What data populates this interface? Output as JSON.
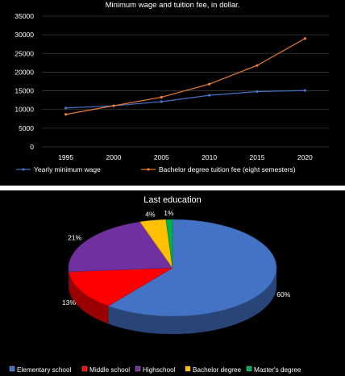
{
  "chart_data": [
    {
      "type": "line",
      "title": "Minimum wage and tuition fee, in dollar.",
      "x": [
        "1995",
        "2000",
        "2005",
        "2010",
        "2015",
        "2020"
      ],
      "ylim": [
        0,
        35000
      ],
      "yticks": [
        "0",
        "5000",
        "10000",
        "15000",
        "20000",
        "25000",
        "30000",
        "35000"
      ],
      "grid": true,
      "legend_position": "bottom",
      "series": [
        {
          "name": "Yearly minimum wage",
          "color": "#4472c4",
          "values": [
            10400,
            11000,
            12100,
            13800,
            14800,
            15100
          ]
        },
        {
          "name": "Bachelor degree tuition fee (eight semesters)",
          "color": "#ed7d31",
          "values": [
            8700,
            11000,
            13300,
            16800,
            21800,
            29000
          ]
        }
      ]
    },
    {
      "type": "pie",
      "title": "Last education",
      "legend_position": "bottom",
      "slices": [
        {
          "name": "Elementary school",
          "value": 60,
          "label": "60%",
          "color": "#4472c4"
        },
        {
          "name": "Middle school",
          "value": 13,
          "label": "13%",
          "color": "#ff0000"
        },
        {
          "name": "Highschool",
          "value": 21,
          "label": "21%",
          "color": "#7030a0"
        },
        {
          "name": "Bachelor degree",
          "value": 4,
          "label": "4%",
          "color": "#ffc000"
        },
        {
          "name": "Master's degree",
          "value": 1,
          "label": "1%",
          "color": "#00b050"
        }
      ]
    }
  ]
}
